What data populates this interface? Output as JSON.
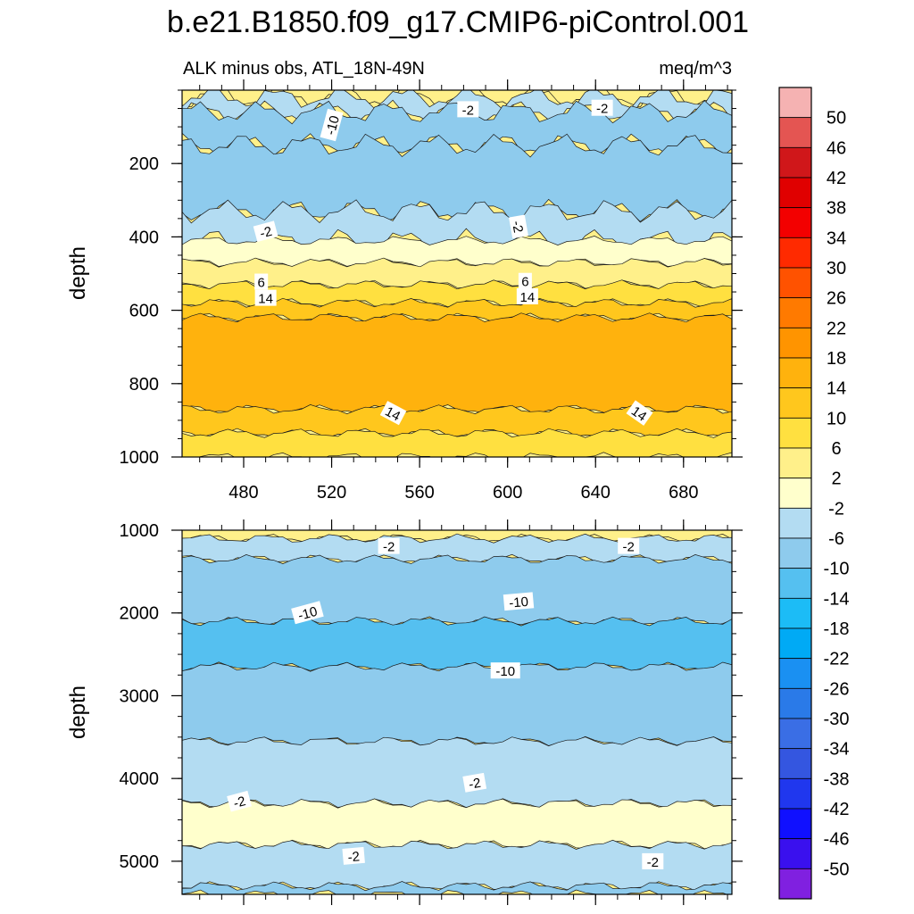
{
  "chart_data": {
    "type": "contour",
    "title": "b.e21.B1850.f09_g17.CMIP6-piControl.001",
    "subtitle_left": "ALK minus obs, ATL_18N-49N",
    "subtitle_right": "meq/m^3",
    "colorbar": {
      "labels": [
        "50",
        "46",
        "42",
        "38",
        "34",
        "30",
        "26",
        "22",
        "18",
        "14",
        "10",
        "6",
        "2",
        "-2",
        "-6",
        "-10",
        "-14",
        "-18",
        "-22",
        "-26",
        "-30",
        "-34",
        "-38",
        "-42",
        "-46",
        "-50"
      ],
      "colors": [
        "#f5b2b2",
        "#e45552",
        "#d0171a",
        "#e00000",
        "#f30000",
        "#ff2a00",
        "#ff5200",
        "#ff7a00",
        "#ff9400",
        "#ffb20d",
        "#ffc71d",
        "#ffe040",
        "#fff08a",
        "#ffffcc",
        "#b3dcf2",
        "#8ecbed",
        "#55c0f0",
        "#1cbcf6",
        "#00aaf5",
        "#1a90f2",
        "#2a7ae8",
        "#3a6ee5",
        "#3456e0",
        "#2037ee",
        "#1010ff",
        "#3a10ee",
        "#8020e0"
      ]
    },
    "x_axis": {
      "ticks": [
        480,
        520,
        560,
        600,
        640,
        680
      ],
      "range": [
        452,
        702
      ]
    },
    "panels": [
      {
        "name": "upper",
        "ylabel": "depth",
        "yrange": [
          0,
          1000
        ],
        "yticks": [
          200,
          400,
          600,
          800,
          1000
        ],
        "show_x_ticklabels": true,
        "bands": [
          {
            "ya": 0,
            "yb": 20,
            "color": "#fff08a"
          },
          {
            "ya": 20,
            "yb": 60,
            "color": "#b3dcf2"
          },
          {
            "ya": 60,
            "yb": 150,
            "color": "#8ecbed"
          },
          {
            "ya": 150,
            "yb": 330,
            "color": "#8ecbed"
          },
          {
            "ya": 330,
            "yb": 410,
            "color": "#b3dcf2"
          },
          {
            "ya": 410,
            "yb": 470,
            "color": "#ffffcc"
          },
          {
            "ya": 470,
            "yb": 530,
            "color": "#fff08a"
          },
          {
            "ya": 530,
            "yb": 580,
            "color": "#ffe040"
          },
          {
            "ya": 580,
            "yb": 620,
            "color": "#ffc71d"
          },
          {
            "ya": 620,
            "yb": 870,
            "color": "#ffb20d"
          },
          {
            "ya": 870,
            "yb": 935,
            "color": "#ffc71d"
          },
          {
            "ya": 935,
            "yb": 1000,
            "color": "#ffe040"
          }
        ],
        "contour_labels": [
          {
            "x": 520,
            "y": 95,
            "text": "-10",
            "angle": -75
          },
          {
            "x": 582,
            "y": 52,
            "text": "-2",
            "angle": 0
          },
          {
            "x": 643,
            "y": 48,
            "text": "-2",
            "angle": 0
          },
          {
            "x": 490,
            "y": 385,
            "text": "-2",
            "angle": -15
          },
          {
            "x": 605,
            "y": 372,
            "text": "-2",
            "angle": 80
          },
          {
            "x": 488,
            "y": 522,
            "text": "6",
            "angle": 0
          },
          {
            "x": 608,
            "y": 520,
            "text": "6",
            "angle": 0
          },
          {
            "x": 490,
            "y": 566,
            "text": "14",
            "angle": 0
          },
          {
            "x": 609,
            "y": 562,
            "text": "14",
            "angle": 0
          },
          {
            "x": 548,
            "y": 880,
            "text": "14",
            "angle": 28
          },
          {
            "x": 660,
            "y": 880,
            "text": "14",
            "angle": 35
          }
        ]
      },
      {
        "name": "lower",
        "ylabel": "depth",
        "yrange": [
          1000,
          5400
        ],
        "yticks": [
          1000,
          2000,
          3000,
          4000,
          5000
        ],
        "show_x_ticklabels": false,
        "bands": [
          {
            "ya": 1000,
            "yb": 1100,
            "color": "#fff08a"
          },
          {
            "ya": 1100,
            "yb": 1350,
            "color": "#b3dcf2"
          },
          {
            "ya": 1350,
            "yb": 2100,
            "color": "#8ecbed"
          },
          {
            "ya": 2100,
            "yb": 2650,
            "color": "#55c0f0"
          },
          {
            "ya": 2650,
            "yb": 3550,
            "color": "#8ecbed"
          },
          {
            "ya": 3550,
            "yb": 4300,
            "color": "#b3dcf2"
          },
          {
            "ya": 4300,
            "yb": 4800,
            "color": "#ffffcc"
          },
          {
            "ya": 4800,
            "yb": 5300,
            "color": "#b3dcf2"
          },
          {
            "ya": 5300,
            "yb": 5400,
            "color": "#8ecbed"
          }
        ],
        "contour_labels": [
          {
            "x": 546,
            "y": 1190,
            "text": "-2",
            "angle": 0
          },
          {
            "x": 655,
            "y": 1190,
            "text": "-2",
            "angle": 0
          },
          {
            "x": 509,
            "y": 1995,
            "text": "-10",
            "angle": -15
          },
          {
            "x": 605,
            "y": 1860,
            "text": "-10",
            "angle": -5
          },
          {
            "x": 599,
            "y": 2695,
            "text": "-10",
            "angle": 0
          },
          {
            "x": 478,
            "y": 4275,
            "text": "-2",
            "angle": -15
          },
          {
            "x": 585,
            "y": 4050,
            "text": "-2",
            "angle": -10
          },
          {
            "x": 530,
            "y": 4935,
            "text": "-2",
            "angle": -5
          },
          {
            "x": 666,
            "y": 5000,
            "text": "-2",
            "angle": 0
          }
        ]
      }
    ]
  }
}
